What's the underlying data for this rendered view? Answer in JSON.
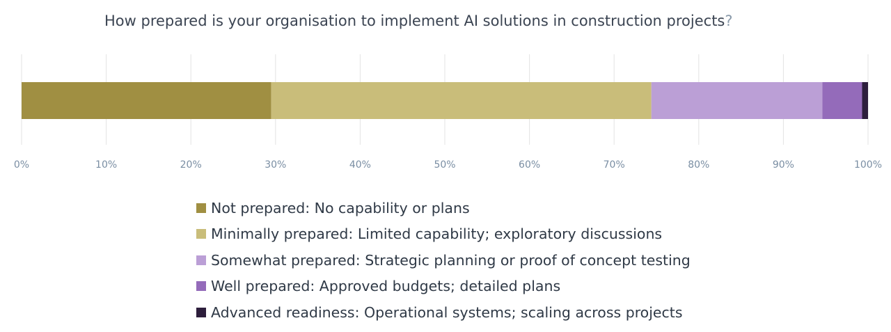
{
  "chart_data": {
    "type": "bar",
    "orientation": "horizontal",
    "stacked": true,
    "title": "How prepared is your organisation to implement AI solutions in construction projects",
    "title_suffix": "?",
    "xlim": [
      0,
      100
    ],
    "x_ticks": [
      "0%",
      "10%",
      "20%",
      "30%",
      "40%",
      "50%",
      "60%",
      "70%",
      "80%",
      "90%",
      "100%"
    ],
    "grid": true,
    "legend_position": "bottom",
    "series": [
      {
        "name": "Not prepared: No capability or plans",
        "value": 29.5,
        "color": "#a08f42"
      },
      {
        "name": "Minimally prepared: Limited capability; exploratory discussions",
        "value": 44.9,
        "color": "#c9bd7a"
      },
      {
        "name": "Somewhat prepared: Strategic planning or proof of concept testing",
        "value": 20.2,
        "color": "#bb9fd6"
      },
      {
        "name": "Well prepared: Approved budgets; detailed plans",
        "value": 4.7,
        "color": "#946bba"
      },
      {
        "name": "Advanced readiness: Operational systems; scaling across projects",
        "value": 0.7,
        "color": "#2d1e3c"
      }
    ]
  }
}
